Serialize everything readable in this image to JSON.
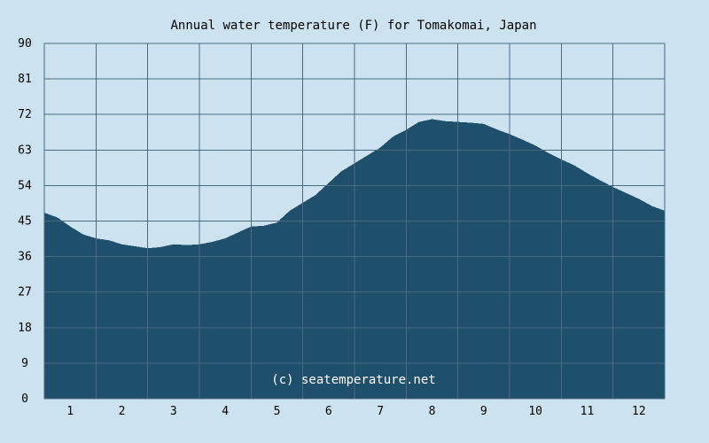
{
  "chart_data": {
    "type": "area",
    "title": "Annual water temperature (F) for Tomakomai, Japan",
    "xlabel": "",
    "ylabel": "",
    "x_ticks": [
      "1",
      "2",
      "3",
      "4",
      "5",
      "6",
      "7",
      "8",
      "9",
      "10",
      "11",
      "12"
    ],
    "y_ticks": [
      "0",
      "9",
      "18",
      "27",
      "36",
      "45",
      "54",
      "63",
      "72",
      "81",
      "90"
    ],
    "xlim": [
      0.5,
      12.5
    ],
    "ylim": [
      0,
      90
    ],
    "grid": true,
    "legend": "none",
    "annotation": "(c) seatemperature.net",
    "colors": {
      "background": "#cce3ef",
      "plot_background": "#cce3ef",
      "area_fill": "#1e4f6b",
      "grid": "#4a6a80"
    },
    "series": [
      {
        "x": [
          0.5,
          0.75,
          1.0,
          1.25,
          1.5,
          1.75,
          2.0,
          2.25,
          2.5,
          2.75,
          3.0,
          3.25,
          3.5,
          3.75,
          4.0,
          4.25,
          4.5,
          4.75,
          5.0,
          5.25,
          5.5,
          5.75,
          6.0,
          6.25,
          6.5,
          6.75,
          7.0,
          7.25,
          7.5,
          7.75,
          8.0,
          8.25,
          8.5,
          8.75,
          9.0,
          9.25,
          9.5,
          9.75,
          10.0,
          10.25,
          10.5,
          10.75,
          11.0,
          11.25,
          11.5,
          11.75,
          12.0,
          12.25,
          12.5
        ],
        "values": [
          47,
          45.8,
          43.5,
          41.5,
          40.5,
          40,
          39,
          38.5,
          38,
          38.3,
          39,
          38.8,
          39,
          39.6,
          40.5,
          42,
          43.5,
          43.7,
          44.5,
          47.5,
          49.5,
          51.5,
          54.5,
          57.5,
          59.5,
          61.5,
          63.5,
          66.3,
          68,
          70,
          70.7,
          70.2,
          70,
          69.8,
          69.5,
          68.1,
          66.9,
          65.5,
          64,
          62.1,
          60.5,
          59,
          57,
          55.2,
          53.5,
          52,
          50.5,
          48.7,
          47.5
        ]
      }
    ]
  }
}
